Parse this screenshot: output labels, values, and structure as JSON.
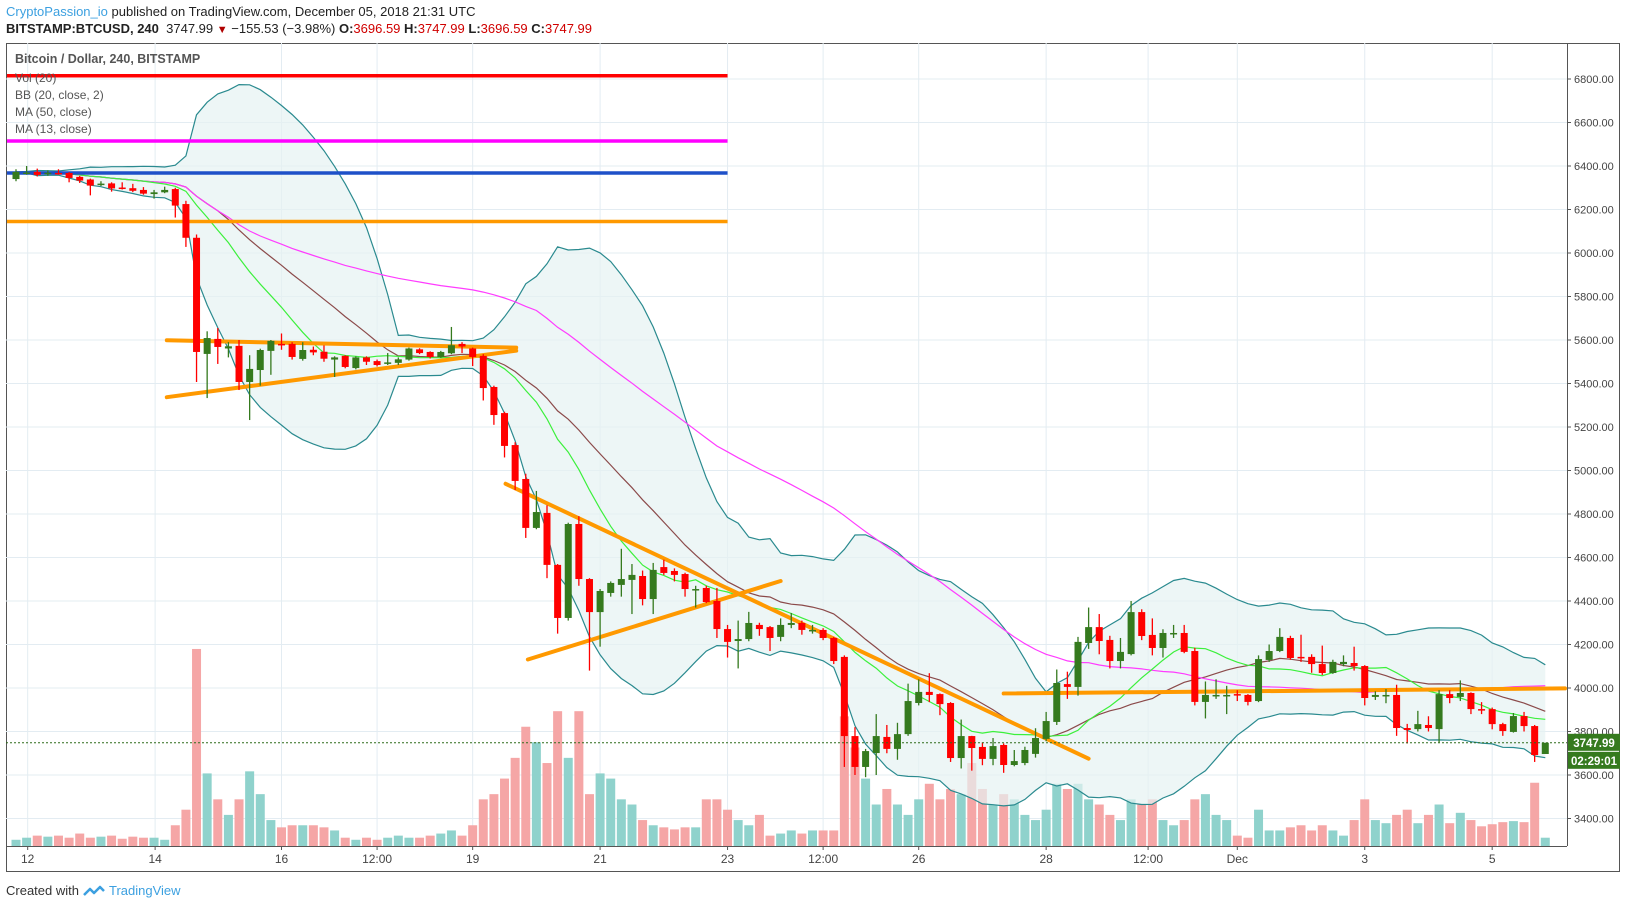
{
  "header": {
    "author": "CryptoPassion_io",
    "published": "published on TradingView.com, December 05, 2018 21:31 UTC",
    "symbol": "BITSTAMP:BTCUSD, 240",
    "last": "3747.99",
    "change": "−155.53 (−3.98%)",
    "o_label": "O:",
    "o": "3696.59",
    "h_label": "H:",
    "h": "3747.99",
    "l_label": "L:",
    "l": "3696.59",
    "c_label": "C:",
    "c": "3747.99"
  },
  "legend": {
    "title": "Bitcoin / Dollar, 240, BITSTAMP",
    "items": [
      "Vol (20)",
      "BB (20, close, 2)",
      "MA (50, close)",
      "MA (13, close)"
    ]
  },
  "footer": {
    "created_with": "Created with",
    "brand": "TradingView"
  },
  "price_label": {
    "price": "3747.99",
    "countdown": "02:29:01"
  },
  "colors": {
    "up": "#357a1e",
    "down": "#ff0000",
    "vol_up": "#8fd2cc",
    "vol_down": "#f5a6a6",
    "ma13": "#3cf03c",
    "ma50": "#ff3cff",
    "bb_basis": "#8b4a4a",
    "bb_band": "#2a8a8f",
    "bb_fill": "#e6f2f2",
    "annot_orange": "#ff9900",
    "annot_red": "#ff0000",
    "annot_magenta": "#ff00ff",
    "annot_blue": "#1e50c8",
    "grid": "#e3ecf2",
    "accent": "#3ca0e0"
  },
  "chart_data": {
    "type": "candlestick",
    "title": "Bitcoin / Dollar, 240, BITSTAMP",
    "ylim": [
      3300,
      6900
    ],
    "y_ticks": [
      "3400.00",
      "3600.00",
      "3800.00",
      "4000.00",
      "4200.00",
      "4400.00",
      "4600.00",
      "4800.00",
      "5000.00",
      "5200.00",
      "5400.00",
      "5600.00",
      "5800.00",
      "6000.00",
      "6200.00",
      "6400.00",
      "6600.00",
      "6800.00"
    ],
    "x_ticks": [
      {
        "label": "12",
        "index": 1.1
      },
      {
        "label": "14",
        "index": 13.1
      },
      {
        "label": "16",
        "index": 25
      },
      {
        "label": "12:00",
        "index": 34
      },
      {
        "label": "19",
        "index": 43
      },
      {
        "label": "21",
        "index": 55
      },
      {
        "label": "23",
        "index": 67
      },
      {
        "label": "12:00",
        "index": 76
      },
      {
        "label": "26",
        "index": 85
      },
      {
        "label": "28",
        "index": 97
      },
      {
        "label": "12:00",
        "index": 106.6
      },
      {
        "label": "Dec",
        "index": 115
      },
      {
        "label": "3",
        "index": 127
      },
      {
        "label": "5",
        "index": 139
      }
    ],
    "ohlc": [
      [
        6340,
        6385,
        6330,
        6373
      ],
      [
        6368,
        6400,
        6360,
        6370
      ],
      [
        6373,
        6388,
        6352,
        6359
      ],
      [
        6366,
        6380,
        6355,
        6369
      ],
      [
        6368,
        6385,
        6360,
        6366
      ],
      [
        6368,
        6372,
        6325,
        6345
      ],
      [
        6350,
        6355,
        6322,
        6333
      ],
      [
        6338,
        6342,
        6265,
        6310
      ],
      [
        6317,
        6330,
        6308,
        6319
      ],
      [
        6320,
        6325,
        6282,
        6297
      ],
      [
        6301,
        6325,
        6292,
        6299
      ],
      [
        6298,
        6318,
        6280,
        6286
      ],
      [
        6290,
        6303,
        6268,
        6273
      ],
      [
        6271,
        6290,
        6250,
        6279
      ],
      [
        6279,
        6305,
        6275,
        6290
      ],
      [
        6294,
        6300,
        6163,
        6218
      ],
      [
        6225,
        6240,
        6028,
        6070
      ],
      [
        6070,
        6085,
        5407,
        5545
      ],
      [
        5536,
        5640,
        5333,
        5609
      ],
      [
        5605,
        5655,
        5490,
        5568
      ],
      [
        5561,
        5590,
        5520,
        5571
      ],
      [
        5573,
        5600,
        5370,
        5407
      ],
      [
        5407,
        5530,
        5232,
        5467
      ],
      [
        5462,
        5560,
        5390,
        5554
      ],
      [
        5550,
        5600,
        5440,
        5596
      ],
      [
        5582,
        5630,
        5555,
        5580
      ],
      [
        5582,
        5590,
        5510,
        5522
      ],
      [
        5513,
        5590,
        5505,
        5554
      ],
      [
        5555,
        5570,
        5530,
        5543
      ],
      [
        5546,
        5575,
        5500,
        5514
      ],
      [
        5510,
        5525,
        5430,
        5520
      ],
      [
        5527,
        5530,
        5470,
        5476
      ],
      [
        5471,
        5525,
        5465,
        5520
      ],
      [
        5520,
        5525,
        5485,
        5500
      ],
      [
        5503,
        5510,
        5478,
        5485
      ],
      [
        5495,
        5540,
        5485,
        5497
      ],
      [
        5495,
        5520,
        5485,
        5511
      ],
      [
        5510,
        5565,
        5505,
        5561
      ],
      [
        5557,
        5562,
        5535,
        5540
      ],
      [
        5545,
        5548,
        5515,
        5522
      ],
      [
        5522,
        5550,
        5518,
        5545
      ],
      [
        5539,
        5660,
        5535,
        5576
      ],
      [
        5582,
        5590,
        5540,
        5570
      ],
      [
        5561,
        5565,
        5480,
        5522
      ],
      [
        5527,
        5535,
        5322,
        5379
      ],
      [
        5384,
        5390,
        5210,
        5255
      ],
      [
        5264,
        5270,
        5060,
        5113
      ],
      [
        5117,
        5130,
        4910,
        4952
      ],
      [
        4961,
        4985,
        4690,
        4736
      ],
      [
        4736,
        4906,
        4730,
        4809
      ],
      [
        4805,
        4840,
        4505,
        4566
      ],
      [
        4566,
        4570,
        4250,
        4322
      ],
      [
        4322,
        4760,
        4310,
        4754
      ],
      [
        4754,
        4790,
        4470,
        4501
      ],
      [
        4501,
        4505,
        4080,
        4349
      ],
      [
        4349,
        4455,
        4190,
        4446
      ],
      [
        4437,
        4490,
        4420,
        4483
      ],
      [
        4474,
        4640,
        4420,
        4501
      ],
      [
        4497,
        4570,
        4340,
        4520
      ],
      [
        4515,
        4540,
        4380,
        4409
      ],
      [
        4409,
        4575,
        4340,
        4543
      ],
      [
        4556,
        4590,
        4520,
        4529
      ],
      [
        4538,
        4550,
        4490,
        4520
      ],
      [
        4524,
        4530,
        4420,
        4455
      ],
      [
        4455,
        4470,
        4370,
        4455
      ],
      [
        4460,
        4470,
        4390,
        4395
      ],
      [
        4400,
        4460,
        4230,
        4271
      ],
      [
        4271,
        4290,
        4140,
        4212
      ],
      [
        4216,
        4310,
        4090,
        4225
      ],
      [
        4225,
        4350,
        4215,
        4299
      ],
      [
        4290,
        4300,
        4240,
        4271
      ],
      [
        4280,
        4285,
        4170,
        4230
      ],
      [
        4235,
        4320,
        4215,
        4290
      ],
      [
        4290,
        4345,
        4275,
        4299
      ],
      [
        4299,
        4310,
        4245,
        4267
      ],
      [
        4267,
        4290,
        4250,
        4267
      ],
      [
        4267,
        4275,
        4220,
        4230
      ],
      [
        4230,
        4235,
        4110,
        4124
      ],
      [
        4143,
        4150,
        3637,
        3779
      ],
      [
        3779,
        3820,
        3600,
        3637
      ],
      [
        3637,
        3720,
        3590,
        3710
      ],
      [
        3701,
        3880,
        3600,
        3779
      ],
      [
        3775,
        3830,
        3700,
        3720
      ],
      [
        3720,
        3840,
        3670,
        3788
      ],
      [
        3788,
        4020,
        3780,
        3940
      ],
      [
        3931,
        4040,
        3920,
        3982
      ],
      [
        3982,
        4068,
        3935,
        3968
      ],
      [
        3972,
        3975,
        3875,
        3926
      ],
      [
        3931,
        3935,
        3660,
        3678
      ],
      [
        3678,
        3855,
        3630,
        3779
      ],
      [
        3779,
        3780,
        3620,
        3724
      ],
      [
        3729,
        3750,
        3645,
        3674
      ],
      [
        3674,
        3770,
        3645,
        3733
      ],
      [
        3738,
        3745,
        3610,
        3646
      ],
      [
        3646,
        3715,
        3640,
        3664
      ],
      [
        3655,
        3730,
        3645,
        3715
      ],
      [
        3697,
        3815,
        3680,
        3770
      ],
      [
        3766,
        3890,
        3755,
        3848
      ],
      [
        3844,
        4085,
        3830,
        4023
      ],
      [
        4018,
        4075,
        3950,
        4005
      ],
      [
        4005,
        4235,
        3965,
        4212
      ],
      [
        4207,
        4370,
        4180,
        4280
      ],
      [
        4280,
        4340,
        4155,
        4216
      ],
      [
        4221,
        4240,
        4090,
        4124
      ],
      [
        4124,
        4230,
        4090,
        4166
      ],
      [
        4156,
        4400,
        4150,
        4349
      ],
      [
        4349,
        4362,
        4220,
        4239
      ],
      [
        4244,
        4320,
        4150,
        4184
      ],
      [
        4184,
        4270,
        4140,
        4253
      ],
      [
        4253,
        4290,
        4230,
        4253
      ],
      [
        4253,
        4290,
        4160,
        4166
      ],
      [
        4170,
        4185,
        3920,
        3936
      ],
      [
        3936,
        4030,
        3860,
        3968
      ],
      [
        3968,
        4040,
        3950,
        3968
      ],
      [
        3968,
        4010,
        3880,
        3968
      ],
      [
        3972,
        3990,
        3940,
        3968
      ],
      [
        3968,
        3972,
        3920,
        3936
      ],
      [
        3940,
        4150,
        3935,
        4133
      ],
      [
        4129,
        4200,
        4120,
        4170
      ],
      [
        4170,
        4275,
        4165,
        4235
      ],
      [
        4230,
        4240,
        4130,
        4138
      ],
      [
        4143,
        4245,
        4120,
        4138
      ],
      [
        4143,
        4155,
        4070,
        4110
      ],
      [
        4110,
        4195,
        4060,
        4069
      ],
      [
        4069,
        4130,
        4065,
        4120
      ],
      [
        4110,
        4150,
        4100,
        4120
      ],
      [
        4115,
        4190,
        4080,
        4101
      ],
      [
        4101,
        4105,
        3920,
        3954
      ],
      [
        3959,
        3985,
        3945,
        3968
      ],
      [
        3963,
        3995,
        3930,
        3968
      ],
      [
        3968,
        4015,
        3780,
        3816
      ],
      [
        3816,
        3835,
        3745,
        3807
      ],
      [
        3811,
        3895,
        3800,
        3834
      ],
      [
        3830,
        3870,
        3800,
        3816
      ],
      [
        3811,
        3990,
        3750,
        3972
      ],
      [
        3972,
        3990,
        3930,
        3954
      ],
      [
        3959,
        4035,
        3940,
        3977
      ],
      [
        3977,
        3980,
        3880,
        3903
      ],
      [
        3903,
        3935,
        3880,
        3899
      ],
      [
        3903,
        3910,
        3810,
        3834
      ],
      [
        3834,
        3840,
        3780,
        3802
      ],
      [
        3798,
        3885,
        3795,
        3871
      ],
      [
        3871,
        3890,
        3800,
        3825
      ],
      [
        3825,
        3830,
        3660,
        3692
      ],
      [
        3696.59,
        3747.99,
        3696.59,
        3747.99
      ]
    ],
    "volume": [
      6,
      8,
      10,
      9,
      10,
      8,
      12,
      8,
      9,
      10,
      7,
      9,
      8,
      8,
      6,
      20,
      35,
      190,
      70,
      45,
      30,
      45,
      72,
      50,
      25,
      18,
      20,
      20,
      20,
      18,
      15,
      8,
      6,
      8,
      6,
      8,
      10,
      8,
      8,
      10,
      12,
      15,
      10,
      20,
      45,
      50,
      65,
      85,
      115,
      100,
      80,
      130,
      85,
      130,
      50,
      70,
      65,
      45,
      40,
      25,
      20,
      18,
      16,
      18,
      18,
      45,
      45,
      35,
      25,
      20,
      30,
      10,
      12,
      15,
      12,
      15,
      15,
      15,
      125,
      95,
      65,
      40,
      55,
      40,
      30,
      45,
      60,
      45,
      55,
      50,
      80,
      55,
      40,
      50,
      45,
      30,
      25,
      35,
      60,
      55,
      60,
      45,
      40,
      30,
      25,
      45,
      40,
      45,
      25,
      20,
      25,
      45,
      50,
      30,
      25,
      10,
      8,
      35,
      15,
      15,
      18,
      20,
      15,
      20,
      15,
      10,
      25,
      45,
      25,
      22,
      30,
      35,
      22,
      30,
      40,
      22,
      32,
      25,
      19,
      21,
      23,
      24,
      23,
      61,
      8
    ],
    "indicators": {
      "ma_fast": 13,
      "ma_slow": 50,
      "bb_length": 20,
      "bb_mult": 2
    },
    "last_price": 3747.99,
    "annotations": {
      "horizontal": [
        {
          "price": 6815,
          "color": "annot_red",
          "to_index": 67
        },
        {
          "price": 6515,
          "color": "annot_magenta",
          "to_index": 67
        },
        {
          "price": 6368,
          "color": "annot_blue",
          "to_index": 67
        },
        {
          "price": 6145,
          "color": "annot_orange",
          "to_index": 67
        }
      ],
      "trendlines": [
        {
          "from": [
            14.2,
            5599
          ],
          "to": [
            47.1,
            5565
          ]
        },
        {
          "from": [
            14.2,
            5337
          ],
          "to": [
            47.1,
            5551
          ]
        },
        {
          "from": [
            46.1,
            4939
          ],
          "to": [
            101,
            3675
          ]
        },
        {
          "from": [
            48.2,
            4131
          ],
          "to": [
            72,
            4492
          ]
        },
        {
          "from": [
            93,
            3975
          ],
          "to": [
            146,
            3998
          ]
        }
      ]
    }
  }
}
